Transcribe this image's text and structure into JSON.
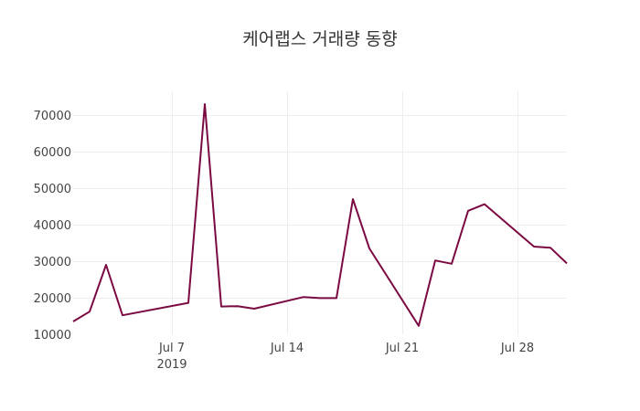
{
  "chart_data": {
    "type": "line",
    "title": "케어랩스 거래량 동향",
    "xlabel": "",
    "ylabel": "",
    "x_axis_type": "date",
    "xlim": [
      "2019-07-01",
      "2019-07-31"
    ],
    "x_ticks": [
      {
        "date": "2019-07-07",
        "label": "Jul 7",
        "sublabel": "2019"
      },
      {
        "date": "2019-07-14",
        "label": "Jul 14",
        "sublabel": ""
      },
      {
        "date": "2019-07-21",
        "label": "Jul 21",
        "sublabel": ""
      },
      {
        "date": "2019-07-28",
        "label": "Jul 28",
        "sublabel": ""
      }
    ],
    "ylim": [
      10000,
      76500
    ],
    "y_ticks": [
      10000,
      20000,
      30000,
      40000,
      50000,
      60000,
      70000
    ],
    "grid": true,
    "legend": "none",
    "colors": {
      "line": "#7b0a42",
      "grid": "#eeeeee",
      "text": "#444444",
      "title": "#333333"
    },
    "series": [
      {
        "x": [
          "2019-07-01",
          "2019-07-02",
          "2019-07-03",
          "2019-07-04",
          "2019-07-08",
          "2019-07-09",
          "2019-07-10",
          "2019-07-11",
          "2019-07-12",
          "2019-07-15",
          "2019-07-16",
          "2019-07-17",
          "2019-07-18",
          "2019-07-19",
          "2019-07-22",
          "2019-07-23",
          "2019-07-24",
          "2019-07-25",
          "2019-07-26",
          "2019-07-29",
          "2019-07-30",
          "2019-07-31"
        ],
        "values": [
          13500,
          16200,
          29000,
          15200,
          18600,
          73000,
          17600,
          17700,
          17000,
          20200,
          19900,
          19900,
          47000,
          33500,
          12300,
          30200,
          29300,
          43800,
          45600,
          34000,
          33700,
          29400
        ]
      }
    ]
  }
}
